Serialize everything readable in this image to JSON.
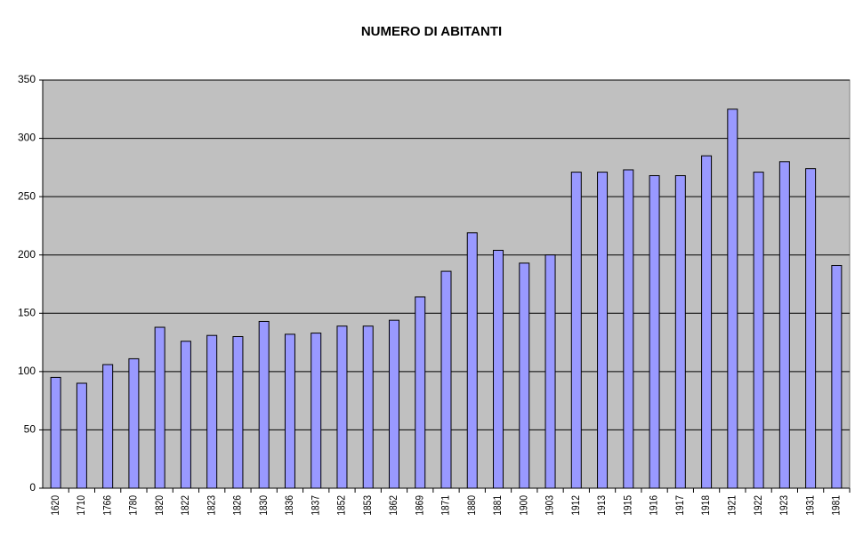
{
  "chart_data": {
    "type": "bar",
    "title": "NUMERO DI ABITANTI",
    "categories": [
      "1620",
      "1710",
      "1766",
      "1780",
      "1820",
      "1822",
      "1823",
      "1826",
      "1830",
      "1836",
      "1837",
      "1852",
      "1853",
      "1862",
      "1869",
      "1871",
      "1880",
      "1881",
      "1900",
      "1903",
      "1912",
      "1913",
      "1915",
      "1916",
      "1917",
      "1918",
      "1921",
      "1922",
      "1923",
      "1931",
      "1981"
    ],
    "values": [
      95,
      90,
      106,
      111,
      138,
      126,
      131,
      130,
      143,
      132,
      133,
      139,
      139,
      144,
      164,
      186,
      219,
      204,
      193,
      200,
      271,
      271,
      273,
      268,
      268,
      285,
      325,
      271,
      280,
      274,
      191
    ],
    "color": "#9999ff",
    "ylim": [
      0,
      350
    ],
    "yticks": [
      0,
      50,
      100,
      150,
      200,
      250,
      300,
      350
    ],
    "grid": true
  }
}
